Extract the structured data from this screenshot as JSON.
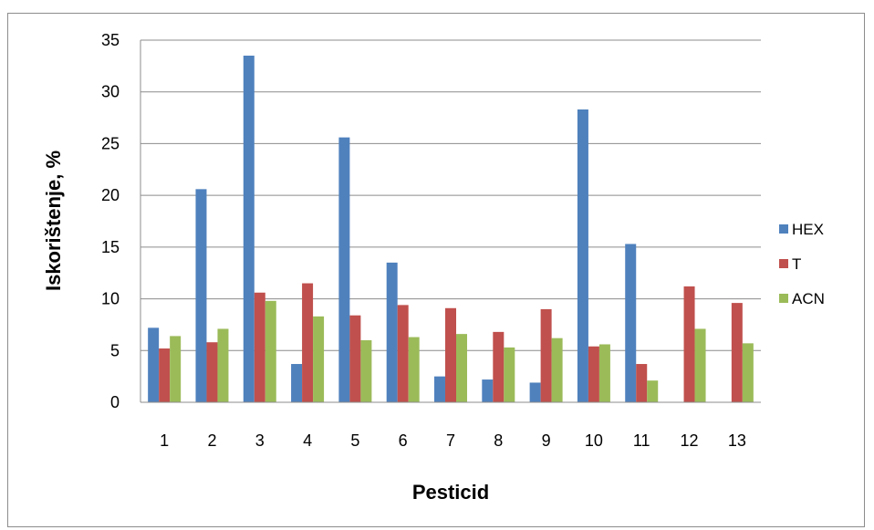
{
  "chart_data": {
    "type": "bar",
    "categories": [
      "1",
      "2",
      "3",
      "4",
      "5",
      "6",
      "7",
      "8",
      "9",
      "10",
      "11",
      "12",
      "13"
    ],
    "series": [
      {
        "name": "HEX",
        "color": "#4f81bd",
        "values": [
          7.2,
          20.6,
          33.5,
          3.7,
          25.6,
          13.5,
          2.5,
          2.2,
          1.9,
          28.3,
          15.3,
          0,
          0
        ]
      },
      {
        "name": "T",
        "color": "#c0504d",
        "values": [
          5.2,
          5.8,
          10.6,
          11.5,
          8.4,
          9.4,
          9.1,
          6.8,
          9.0,
          5.4,
          3.7,
          11.2,
          9.6
        ]
      },
      {
        "name": "ACN",
        "color": "#9bbb59",
        "values": [
          6.4,
          7.1,
          9.8,
          8.3,
          6.0,
          6.3,
          6.6,
          5.3,
          6.2,
          5.6,
          2.1,
          7.1,
          5.7
        ]
      }
    ],
    "xlabel": "Pesticid",
    "ylabel": "Iskorištenje, %",
    "ylim": [
      0,
      35
    ],
    "yticks": [
      0,
      5,
      10,
      15,
      20,
      25,
      30,
      35
    ],
    "grid": true,
    "legend": "right"
  }
}
